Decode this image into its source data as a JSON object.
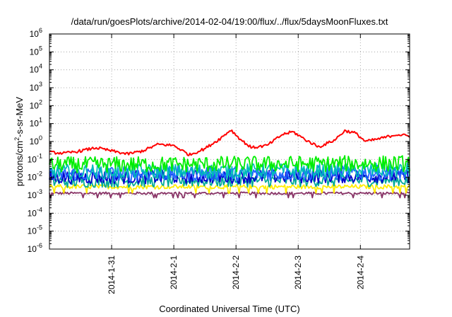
{
  "chart_data": {
    "type": "line",
    "title": "/data/run/goesPlots/archive/2014-02-04/19:00/flux/../flux/5daysMoonFluxes.txt",
    "xlabel": "Coordinated Universal Time (UTC)",
    "ylabel": "protons/cm²-s-sr-MeV",
    "ylabel_parts": {
      "main": "protons/cm",
      "sup": "2",
      "rest": "-s-sr-MeV"
    },
    "y_scale": "log",
    "ylim": [
      1e-06,
      1000000.0
    ],
    "y_ticks": [
      {
        "exp": "-6",
        "value": 1e-06
      },
      {
        "exp": "-5",
        "value": 1e-05
      },
      {
        "exp": "-4",
        "value": 0.0001
      },
      {
        "exp": "-3",
        "value": 0.001
      },
      {
        "exp": "-2",
        "value": 0.01
      },
      {
        "exp": "-1",
        "value": 0.1
      },
      {
        "exp": "0",
        "value": 1
      },
      {
        "exp": "1",
        "value": 10
      },
      {
        "exp": "2",
        "value": 100
      },
      {
        "exp": "3",
        "value": 1000
      },
      {
        "exp": "4",
        "value": 10000
      },
      {
        "exp": "5",
        "value": 100000
      },
      {
        "exp": "6",
        "value": 1000000
      }
    ],
    "y_tick_base": "10",
    "xlim": [
      "2014-01-30T00:00",
      "2014-02-04T19:00"
    ],
    "x_ticks": [
      {
        "label": "2014-1-31",
        "date": "2014-01-31T00:00"
      },
      {
        "label": "2014-2-1",
        "date": "2014-02-01T00:00"
      },
      {
        "label": "2014-2-2",
        "date": "2014-02-02T00:00"
      },
      {
        "label": "2014-2-3",
        "date": "2014-02-03T00:00"
      },
      {
        "label": "2014-2-4",
        "date": "2014-02-04T00:00"
      }
    ],
    "grid": true,
    "legend": "none",
    "series": [
      {
        "color": "#ff0000",
        "points": [
          [
            "2014-01-30T00:00",
            0.25
          ],
          [
            "2014-01-30T06:00",
            0.22
          ],
          [
            "2014-01-30T12:00",
            0.3
          ],
          [
            "2014-01-30T18:00",
            0.45
          ],
          [
            "2014-01-31T00:00",
            0.3
          ],
          [
            "2014-01-31T06:00",
            0.2
          ],
          [
            "2014-01-31T12:00",
            0.3
          ],
          [
            "2014-01-31T18:00",
            0.7
          ],
          [
            "2014-02-01T00:00",
            0.6
          ],
          [
            "2014-02-01T06:00",
            0.18
          ],
          [
            "2014-02-01T12:00",
            0.4
          ],
          [
            "2014-02-01T18:00",
            1.5
          ],
          [
            "2014-02-01T22:00",
            4.5
          ],
          [
            "2014-02-02T02:00",
            1.2
          ],
          [
            "2014-02-02T06:00",
            0.45
          ],
          [
            "2014-02-02T12:00",
            0.6
          ],
          [
            "2014-02-02T18:00",
            2.5
          ],
          [
            "2014-02-02T22:00",
            3.5
          ],
          [
            "2014-02-03T03:00",
            1.2
          ],
          [
            "2014-02-03T08:00",
            0.5
          ],
          [
            "2014-02-03T14:00",
            1.2
          ],
          [
            "2014-02-03T18:00",
            4.0
          ],
          [
            "2014-02-03T22:00",
            3.0
          ],
          [
            "2014-02-04T02:00",
            1.0
          ],
          [
            "2014-02-04T08:00",
            1.5
          ],
          [
            "2014-02-04T14:00",
            2.5
          ],
          [
            "2014-02-04T19:00",
            2.0
          ]
        ]
      },
      {
        "color": "#00ee00",
        "points": [
          [
            "2014-01-30T00:00",
            0.05
          ],
          [
            "2014-02-04T19:00",
            0.06
          ]
        ]
      },
      {
        "color": "#00bbbb",
        "points": [
          [
            "2014-01-30T00:00",
            0.02
          ],
          [
            "2014-02-04T19:00",
            0.025
          ]
        ]
      },
      {
        "color": "#2266ff",
        "points": [
          [
            "2014-01-30T00:00",
            0.015
          ],
          [
            "2014-02-04T19:00",
            0.018
          ]
        ]
      },
      {
        "color": "#0000cc",
        "points": [
          [
            "2014-01-30T00:00",
            0.01
          ],
          [
            "2014-02-04T19:00",
            0.012
          ]
        ]
      },
      {
        "color": "#00aa99",
        "points": [
          [
            "2014-01-30T00:00",
            0.006
          ],
          [
            "2014-02-04T19:00",
            0.007
          ]
        ]
      },
      {
        "color": "#ffee00",
        "points": [
          [
            "2014-01-30T00:00",
            0.003
          ],
          [
            "2014-02-04T19:00",
            0.003
          ]
        ]
      },
      {
        "color": "#883366",
        "points": [
          [
            "2014-01-30T00:00",
            0.0013
          ],
          [
            "2014-02-04T19:00",
            0.0013
          ]
        ]
      }
    ]
  }
}
